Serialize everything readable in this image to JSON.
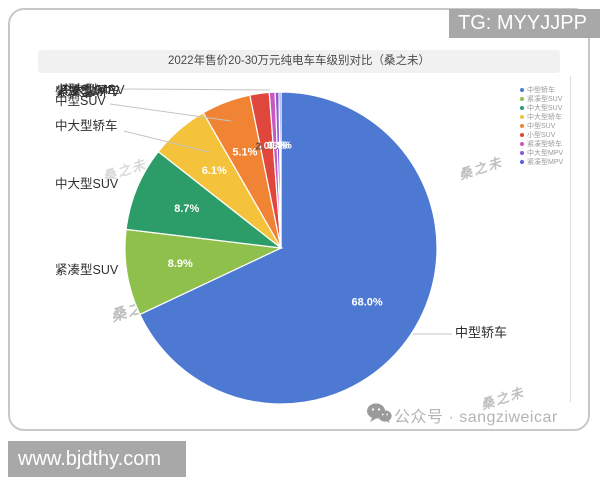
{
  "overlays": {
    "top_right_banner": "TG: MYYJJPP",
    "bottom_left_banner": "www.bjdthy.com",
    "watermark_text": "桑之未",
    "footer_account": "公众号 · sangziweicar"
  },
  "chart_data": {
    "type": "pie",
    "title": "2022年售价20-30万元纯电车车级别对比（桑之未）",
    "legend_position": "right",
    "start_angle_deg": 0,
    "direction": "clockwise",
    "value_suffix": "%",
    "slices": [
      {
        "label": "中型轿车",
        "value": 68.0,
        "color": "#4d79d3",
        "label_color": "#ffffff"
      },
      {
        "label": "紧凑型SUV",
        "value": 8.9,
        "color": "#8fc04c",
        "label_color": "#ffffff"
      },
      {
        "label": "中大型SUV",
        "value": 8.7,
        "color": "#2c9c68",
        "label_color": "#ffffff"
      },
      {
        "label": "中大型轿车",
        "value": 6.1,
        "color": "#f5c23b",
        "label_color": "#ffffff"
      },
      {
        "label": "中型SUV",
        "value": 5.1,
        "color": "#f08434",
        "label_color": "#ffffff"
      },
      {
        "label": "小型SUV",
        "value": 2.0,
        "color": "#e0473c",
        "label_color": "#5b4a43"
      },
      {
        "label": "紧凑型轿车",
        "value": 0.6,
        "color": "#c957c0",
        "label_color": "#ffffff"
      },
      {
        "label": "中大型MPV",
        "value": 0.4,
        "color": "#8a5bd6",
        "label_color": "#ffffff"
      },
      {
        "label": "紧凑型MPV",
        "value": 0.2,
        "color": "#5a60d8",
        "label_color": "#ffffff"
      }
    ]
  }
}
